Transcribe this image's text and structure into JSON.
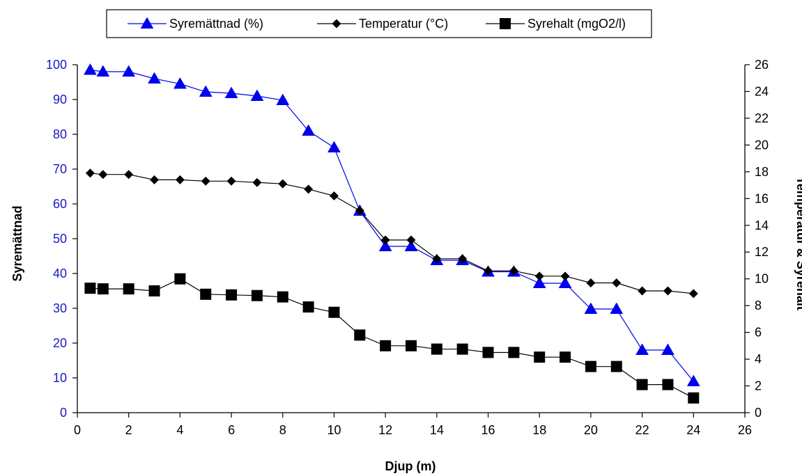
{
  "chart_data": {
    "type": "line",
    "xlabel": "Djup (m)",
    "ylabel": "Syremättnad",
    "y2label": "Temperatur & Syrehalt",
    "xlim": [
      0,
      26
    ],
    "xticks": [
      0,
      2,
      4,
      6,
      8,
      10,
      12,
      14,
      16,
      18,
      20,
      22,
      24,
      26
    ],
    "ylim": [
      0,
      100
    ],
    "yticks": [
      0,
      10,
      20,
      30,
      40,
      50,
      60,
      70,
      80,
      90,
      100
    ],
    "y2lim": [
      0,
      26
    ],
    "y2ticks": [
      0,
      2,
      4,
      6,
      8,
      10,
      12,
      14,
      16,
      18,
      20,
      22,
      24,
      26
    ],
    "legend_position": "top",
    "colors": {
      "primary_axis": "#1818c8",
      "syremattnad": "#0000ee",
      "temperatur": "#000000",
      "syrehalt": "#000000"
    },
    "series": [
      {
        "name": "Syremättnad (%)",
        "axis": "left",
        "marker": "triangle",
        "x": [
          0.5,
          1,
          2,
          3,
          4,
          5,
          6,
          7,
          8,
          9,
          10,
          11,
          12,
          13,
          14,
          15,
          16,
          17,
          18,
          19,
          20,
          21,
          22,
          23,
          24
        ],
        "y": [
          98.5,
          98,
          98,
          96,
          94.5,
          92.2,
          91.8,
          91,
          89.8,
          81,
          76.2,
          58,
          47.8,
          47.8,
          43.8,
          43.8,
          40.5,
          40.5,
          37.2,
          37.2,
          29.8,
          29.8,
          18,
          18,
          9
        ]
      },
      {
        "name": "Temperatur (°C)",
        "axis": "right",
        "marker": "diamond",
        "x": [
          0.5,
          1,
          2,
          3,
          4,
          5,
          6,
          7,
          8,
          9,
          10,
          11,
          12,
          13,
          14,
          15,
          16,
          17,
          18,
          19,
          20,
          21,
          22,
          23,
          24
        ],
        "y": [
          17.9,
          17.8,
          17.8,
          17.4,
          17.4,
          17.3,
          17.3,
          17.2,
          17.1,
          16.7,
          16.2,
          15.1,
          12.9,
          12.9,
          11.5,
          11.5,
          10.6,
          10.6,
          10.2,
          10.2,
          9.7,
          9.7,
          9.1,
          9.1,
          8.9
        ]
      },
      {
        "name": "Syrehalt (mgO2/l)",
        "axis": "right",
        "marker": "square",
        "x": [
          0.5,
          1,
          2,
          3,
          4,
          5,
          6,
          7,
          8,
          9,
          10,
          11,
          12,
          13,
          14,
          15,
          16,
          17,
          18,
          19,
          20,
          21,
          22,
          23,
          24
        ],
        "y": [
          9.3,
          9.25,
          9.25,
          9.1,
          10,
          8.85,
          8.8,
          8.75,
          8.65,
          7.9,
          7.5,
          5.8,
          5.0,
          5.0,
          4.75,
          4.75,
          4.5,
          4.5,
          4.15,
          4.15,
          3.45,
          3.45,
          2.1,
          2.1,
          1.1
        ]
      }
    ]
  }
}
